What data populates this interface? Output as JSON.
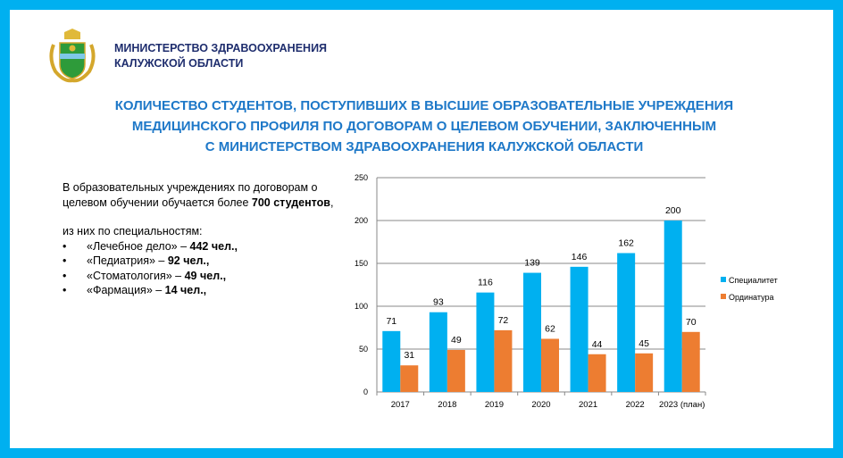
{
  "header": {
    "ministry_line1": "МИНИСТЕРСТВО ЗДРАВООХРАНЕНИЯ",
    "ministry_line2": "КАЛУЖСКОЙ ОБЛАСТИ"
  },
  "title": {
    "line1": "КОЛИЧЕСТВО СТУДЕНТОВ, ПОСТУПИВШИХ В ВЫСШИЕ ОБРАЗОВАТЕЛЬНЫЕ УЧРЕЖДЕНИЯ",
    "line2": "МЕДИЦИНСКОГО ПРОФИЛЯ ПО ДОГОВОРАМ О ЦЕЛЕВОМ ОБУЧЕНИИ, ЗАКЛЮЧЕННЫМ",
    "line3": "С МИНИСТЕРСТВОМ ЗДРАВООХРАНЕНИЯ КАЛУЖСКОЙ ОБЛАСТИ"
  },
  "summary": {
    "line1": "В образовательных учреждениях по договорам о",
    "line2_pre": "целевом обучении обучается более ",
    "line2_bold": "700 студентов",
    "line2_post": ",",
    "sub": "из них по специальностям:",
    "items": [
      {
        "name": "«Лечебное дело» – ",
        "value": "442 чел.,"
      },
      {
        "name": "«Педиатрия» – ",
        "value": "92 чел.,"
      },
      {
        "name": "«Стоматология»  – ",
        "value": "49 чел.,"
      },
      {
        "name": "«Фармация» – ",
        "value": "14 чел.,"
      }
    ]
  },
  "chart_data": {
    "type": "bar",
    "categories": [
      "2017",
      "2018",
      "2019",
      "2020",
      "2021",
      "2022",
      "2023 (план)"
    ],
    "series": [
      {
        "name": "Специалитет",
        "color": "#00b0f0",
        "values": [
          71,
          93,
          116,
          139,
          146,
          162,
          200
        ]
      },
      {
        "name": "Ординатура",
        "color": "#ed7d31",
        "values": [
          31,
          49,
          72,
          62,
          44,
          45,
          70
        ]
      }
    ],
    "ylim": [
      0,
      250
    ],
    "yticks": [
      0,
      50,
      100,
      150,
      200,
      250
    ],
    "grid": true,
    "legend": "right"
  }
}
